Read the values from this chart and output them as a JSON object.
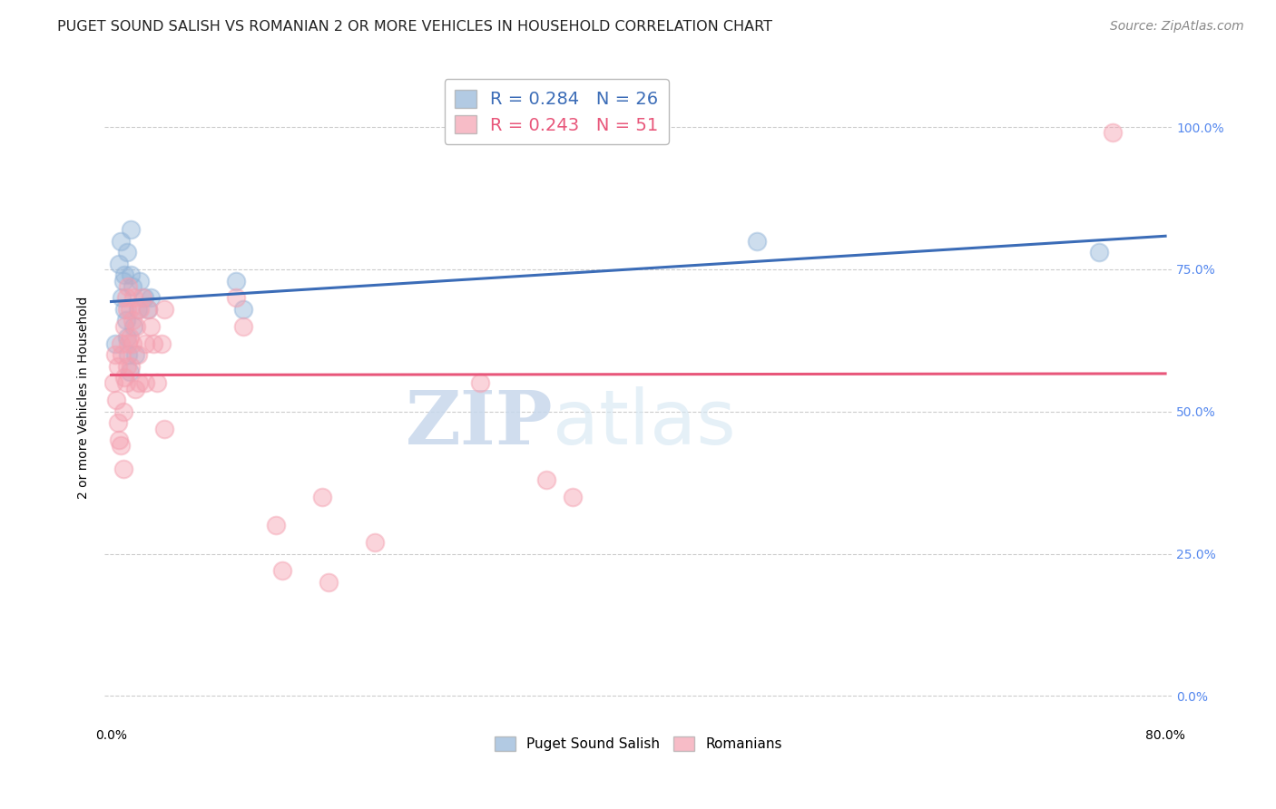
{
  "title": "PUGET SOUND SALISH VS ROMANIAN 2 OR MORE VEHICLES IN HOUSEHOLD CORRELATION CHART",
  "source": "Source: ZipAtlas.com",
  "ylabel": "2 or more Vehicles in Household",
  "watermark_zip": "ZIP",
  "watermark_atlas": "atlas",
  "legend_blue_r": "R = 0.284",
  "legend_blue_n": "N = 26",
  "legend_pink_r": "R = 0.243",
  "legend_pink_n": "N = 51",
  "legend_blue_label": "Puget Sound Salish",
  "legend_pink_label": "Romanians",
  "blue_color": "#92B4D8",
  "pink_color": "#F4A0B0",
  "blue_line_color": "#3B6CB7",
  "pink_line_color": "#E8567A",
  "blue_r_color": "#3B6CB7",
  "pink_r_color": "#E8567A",
  "ytick_labels": [
    "0.0%",
    "25.0%",
    "50.0%",
    "75.0%",
    "100.0%"
  ],
  "ytick_values": [
    0.0,
    0.25,
    0.5,
    0.75,
    1.0
  ],
  "xlim": [
    -0.005,
    0.805
  ],
  "ylim": [
    -0.05,
    1.1
  ],
  "blue_x": [
    0.003,
    0.006,
    0.007,
    0.008,
    0.009,
    0.01,
    0.01,
    0.011,
    0.012,
    0.012,
    0.013,
    0.014,
    0.015,
    0.015,
    0.016,
    0.017,
    0.018,
    0.02,
    0.022,
    0.025,
    0.028,
    0.03,
    0.095,
    0.1,
    0.49,
    0.75
  ],
  "blue_y": [
    0.62,
    0.76,
    0.8,
    0.7,
    0.73,
    0.68,
    0.74,
    0.66,
    0.63,
    0.78,
    0.6,
    0.57,
    0.74,
    0.82,
    0.72,
    0.65,
    0.6,
    0.68,
    0.73,
    0.7,
    0.68,
    0.7,
    0.73,
    0.68,
    0.8,
    0.78
  ],
  "pink_x": [
    0.002,
    0.003,
    0.004,
    0.005,
    0.005,
    0.006,
    0.007,
    0.007,
    0.008,
    0.009,
    0.009,
    0.01,
    0.01,
    0.011,
    0.011,
    0.012,
    0.012,
    0.013,
    0.013,
    0.014,
    0.014,
    0.015,
    0.016,
    0.016,
    0.017,
    0.018,
    0.019,
    0.02,
    0.021,
    0.022,
    0.024,
    0.026,
    0.026,
    0.028,
    0.03,
    0.032,
    0.035,
    0.038,
    0.04,
    0.04,
    0.095,
    0.1,
    0.125,
    0.13,
    0.16,
    0.165,
    0.2,
    0.28,
    0.33,
    0.35,
    0.76
  ],
  "pink_y": [
    0.55,
    0.6,
    0.52,
    0.48,
    0.58,
    0.45,
    0.44,
    0.62,
    0.6,
    0.4,
    0.5,
    0.56,
    0.65,
    0.7,
    0.55,
    0.68,
    0.58,
    0.72,
    0.62,
    0.63,
    0.68,
    0.58,
    0.66,
    0.62,
    0.7,
    0.54,
    0.65,
    0.6,
    0.55,
    0.68,
    0.7,
    0.62,
    0.55,
    0.68,
    0.65,
    0.62,
    0.55,
    0.62,
    0.47,
    0.68,
    0.7,
    0.65,
    0.3,
    0.22,
    0.35,
    0.2,
    0.27,
    0.55,
    0.38,
    0.35,
    0.99
  ],
  "title_fontsize": 11.5,
  "axis_label_fontsize": 10,
  "tick_fontsize": 10,
  "legend_fontsize": 14,
  "source_fontsize": 10,
  "marker_size": 200,
  "marker_alpha": 0.45,
  "line_width": 2.2,
  "background_color": "#FFFFFF",
  "grid_color": "#CCCCCC",
  "ytick_color": "#5588EE",
  "title_color": "#222222"
}
